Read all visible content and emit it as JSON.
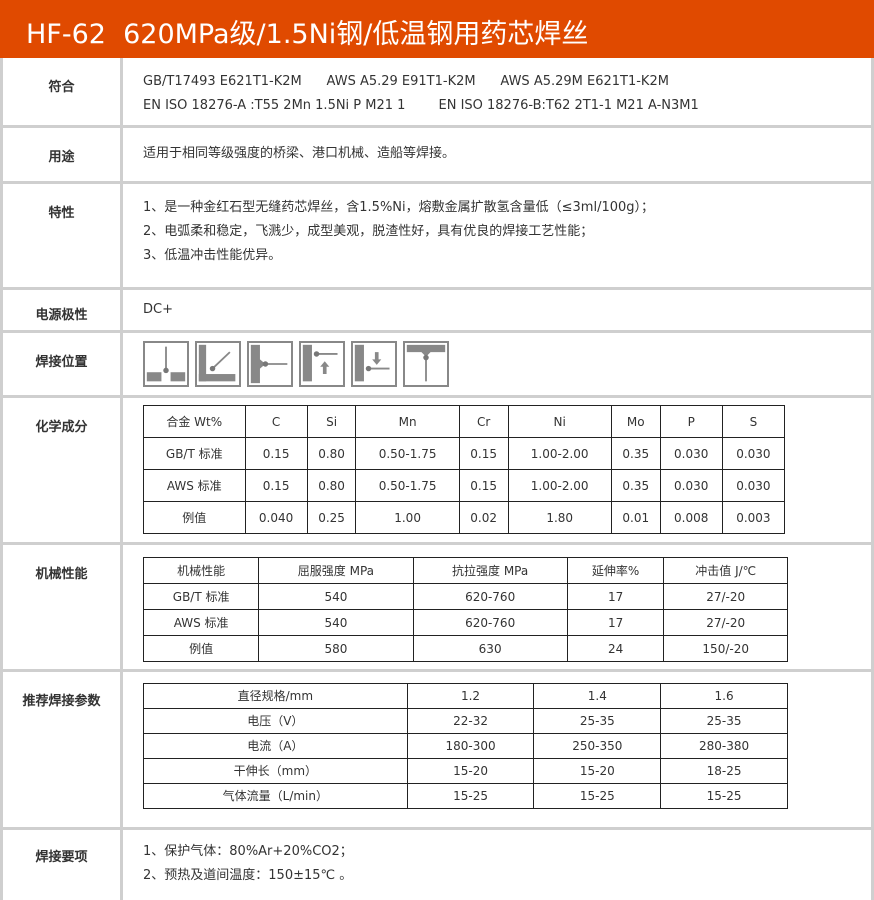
{
  "title": "HF-62  620MPa级/1.5Ni钢/低温钢用药芯焊丝",
  "rows": {
    "conform": {
      "label": "符合",
      "lines": [
        "GB/T17493 E621T1-K2M      AWS A5.29 E91T1-K2M      AWS A5.29M E621T1-K2M",
        "EN ISO 18276-A :T55 2Mn 1.5Ni P M21 1        EN ISO 18276-B:T62 2T1-1 M21 A-N3M1"
      ]
    },
    "usage": {
      "label": "用途",
      "lines": [
        "适用于相同等级强度的桥梁、港口机械、造船等焊接。"
      ]
    },
    "features": {
      "label": "特性",
      "lines": [
        "1、是一种金红石型无缝药芯焊丝，含1.5%Ni，熔敷金属扩散氢含量低（≤3ml/100g）；",
        "2、电弧柔和稳定，飞溅少，成型美观，脱渣性好，具有优良的焊接工艺性能；",
        "3、低温冲击性能优异。"
      ]
    },
    "power": {
      "label": "电源极性",
      "lines": [
        "DC+"
      ]
    },
    "position": {
      "label": "焊接位置",
      "icons": [
        "flat-position-icon",
        "horizontal-fillet-icon",
        "horizontal-position-icon",
        "vertical-up-icon",
        "vertical-down-icon",
        "overhead-position-icon"
      ]
    },
    "chem": {
      "label": "化学成分",
      "rows": [
        [
          "合金 Wt%",
          "C",
          "Si",
          "Mn",
          "Cr",
          "Ni",
          "Mo",
          "P",
          "S"
        ],
        [
          "GB/T 标准",
          "0.15",
          "0.80",
          "0.50-1.75",
          "0.15",
          "1.00-2.00",
          "0.35",
          "0.030",
          "0.030"
        ],
        [
          "AWS 标准",
          "0.15",
          "0.80",
          "0.50-1.75",
          "0.15",
          "1.00-2.00",
          "0.35",
          "0.030",
          "0.030"
        ],
        [
          "例值",
          "0.040",
          "0.25",
          "1.00",
          "0.02",
          "1.80",
          "0.01",
          "0.008",
          "0.003"
        ]
      ]
    },
    "mech": {
      "label": "机械性能",
      "rows": [
        [
          "机械性能",
          "屈服强度 MPa",
          "抗拉强度 MPa",
          "延伸率%",
          "冲击值 J/℃"
        ],
        [
          "GB/T 标准",
          "540",
          "620-760",
          "17",
          "27/-20"
        ],
        [
          "AWS 标准",
          "540",
          "620-760",
          "17",
          "27/-20"
        ],
        [
          "例值",
          "580",
          "630",
          "24",
          "150/-20"
        ]
      ]
    },
    "params": {
      "label": "推荐焊接参数",
      "rows": [
        [
          "直径规格/mm",
          "1.2",
          "1.4",
          "1.6"
        ],
        [
          "电压（V）",
          "22-32",
          "25-35",
          "25-35"
        ],
        [
          "电流（A）",
          "180-300",
          "250-350",
          "280-380"
        ],
        [
          "干伸长（mm）",
          "15-20",
          "15-20",
          "18-25"
        ],
        [
          "气体流量（L/min）",
          "15-25",
          "15-25",
          "15-25"
        ]
      ]
    },
    "notes": {
      "label": "焊接要项",
      "lines": [
        "1、保护气体：80%Ar+20%CO2；",
        "2、预热及道间温度：150±15℃ 。"
      ]
    }
  }
}
